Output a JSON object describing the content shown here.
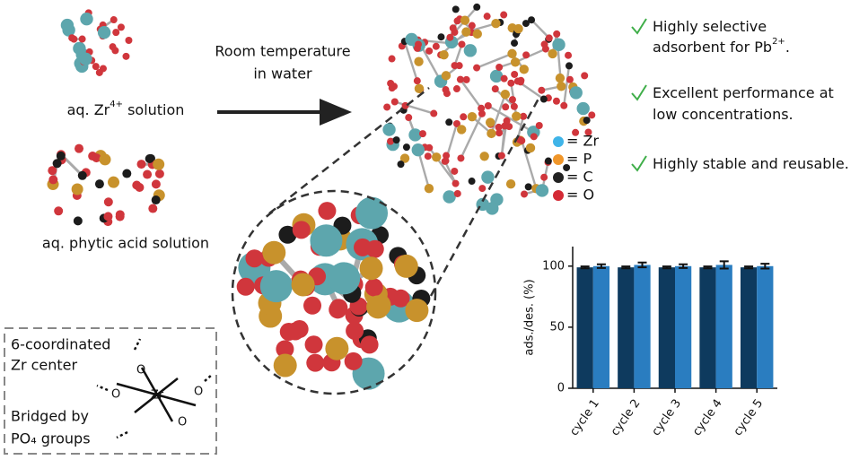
{
  "zr_label": {
    "text": "aq. Zr",
    "sup": "4+",
    "rest": " solution"
  },
  "phytic_label": "aq. phytic acid solution",
  "arrow_label": [
    "Room temperature",
    "in water"
  ],
  "legend": [
    {
      "label": "= Zr",
      "color": "#3fb4e8"
    },
    {
      "label": "= P",
      "color": "#f0962a"
    },
    {
      "label": "= C",
      "color": "#222222"
    },
    {
      "label": "= O",
      "color": "#d42a35"
    }
  ],
  "bullets": [
    {
      "lines": [
        "Highly selective",
        "adsorbent for Pb"
      ],
      "sup": "2+",
      "rest": "."
    },
    {
      "lines": [
        "Excellent performance at",
        "low concentrations."
      ]
    },
    {
      "lines": [
        "Highly stable and reusable."
      ]
    }
  ],
  "box": {
    "lines": [
      "6-coordinated",
      "Zr center",
      "Bridged by",
      "PO₄ groups"
    ],
    "center": "Zr",
    "oxygen": [
      "O",
      "O",
      "O",
      "O"
    ]
  },
  "chart_data": {
    "type": "bar",
    "ylabel": "ads./des. (%)",
    "categories": [
      "cycle 1",
      "cycle 2",
      "cycle 3",
      "cycle 4",
      "cycle 5"
    ],
    "series": [
      {
        "color": "#0e3a5e",
        "values": [
          99,
          99,
          99,
          99,
          99
        ],
        "errors": [
          0.8,
          0.8,
          0.8,
          0.8,
          0.8
        ]
      },
      {
        "color": "#2a7dc0",
        "values": [
          100,
          101,
          100,
          101,
          100
        ],
        "errors": [
          1.5,
          2,
          1.5,
          3,
          2
        ]
      }
    ],
    "ylim": [
      0,
      116
    ],
    "yticks": [
      0,
      50,
      100
    ]
  }
}
